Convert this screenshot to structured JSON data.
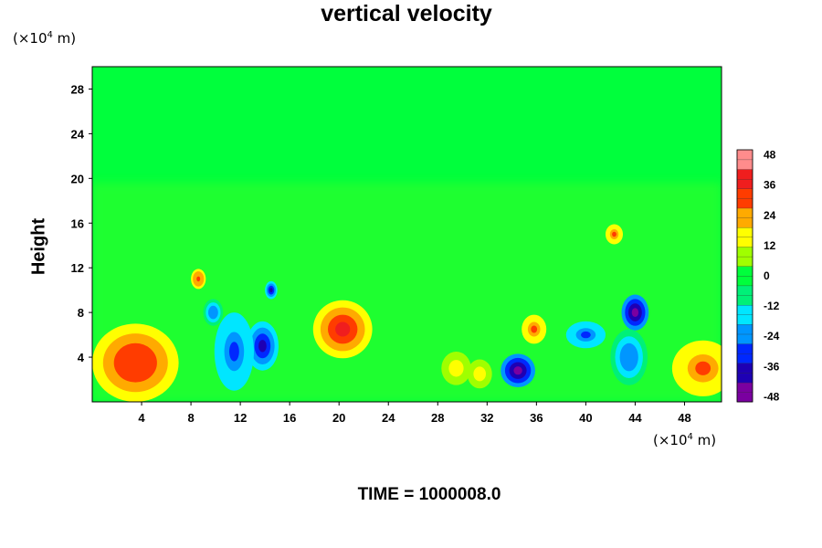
{
  "chart_data": {
    "type": "heatmap",
    "title": "vertical velocity",
    "ylabel": "Height",
    "y_unit": {
      "prefix": "(×10",
      "exp": "4",
      "suffix": " m)"
    },
    "x_unit": {
      "prefix": "(×10",
      "exp": "4",
      "suffix": " m)"
    },
    "xlim": [
      0,
      51
    ],
    "ylim": [
      0,
      30
    ],
    "xticks": [
      4,
      8,
      12,
      16,
      20,
      24,
      28,
      32,
      36,
      40,
      44,
      48
    ],
    "yticks": [
      4,
      8,
      12,
      16,
      20,
      24,
      28
    ],
    "colorbar": {
      "range": [
        -50,
        50
      ],
      "ticks": [
        48,
        36,
        24,
        12,
        0,
        -12,
        -24,
        -36,
        -48
      ],
      "colors": [
        "#7a00a0",
        "#1e00b4",
        "#0028ff",
        "#0096ff",
        "#00e6ff",
        "#00f078",
        "#00ff3c",
        "#a0ff00",
        "#ffff00",
        "#ffaa00",
        "#ff3c00",
        "#f01e1e",
        "#ff8c8c"
      ]
    },
    "features": [
      {
        "x": 3.5,
        "y": 3.5,
        "rx": 3.5,
        "ry": 3.5,
        "value": 34
      },
      {
        "x": 20.3,
        "y": 6.5,
        "rx": 2.4,
        "ry": 2.6,
        "value": 40
      },
      {
        "x": 49.5,
        "y": 3,
        "rx": 2.5,
        "ry": 2.5,
        "value": 28
      },
      {
        "x": 35.8,
        "y": 6.5,
        "rx": 1,
        "ry": 1.3,
        "value": 30
      },
      {
        "x": 29.5,
        "y": 3,
        "rx": 1.2,
        "ry": 1.5,
        "value": 16
      },
      {
        "x": 31.4,
        "y": 2.5,
        "rx": 1,
        "ry": 1.3,
        "value": 18
      },
      {
        "x": 42.3,
        "y": 15,
        "rx": 0.7,
        "ry": 0.9,
        "value": 28
      },
      {
        "x": 8.6,
        "y": 11,
        "rx": 0.6,
        "ry": 0.9,
        "value": 32
      },
      {
        "x": 34.5,
        "y": 2.8,
        "rx": 1.4,
        "ry": 1.5,
        "value": -46
      },
      {
        "x": 44,
        "y": 8,
        "rx": 1.1,
        "ry": 1.6,
        "value": -47
      },
      {
        "x": 13.8,
        "y": 5,
        "rx": 1.3,
        "ry": 2.2,
        "value": -40
      },
      {
        "x": 11.5,
        "y": 4.5,
        "rx": 1.6,
        "ry": 3.5,
        "value": -30
      },
      {
        "x": 14.5,
        "y": 10,
        "rx": 0.5,
        "ry": 0.8,
        "value": -40
      },
      {
        "x": 9.8,
        "y": 8,
        "rx": 0.8,
        "ry": 1.2,
        "value": -24
      },
      {
        "x": 43.5,
        "y": 4,
        "rx": 1.5,
        "ry": 2.5,
        "value": -24
      },
      {
        "x": 40,
        "y": 6,
        "rx": 1.6,
        "ry": 1.2,
        "value": -28
      }
    ]
  },
  "footer": {
    "time": "TIME = 1000008.0"
  }
}
